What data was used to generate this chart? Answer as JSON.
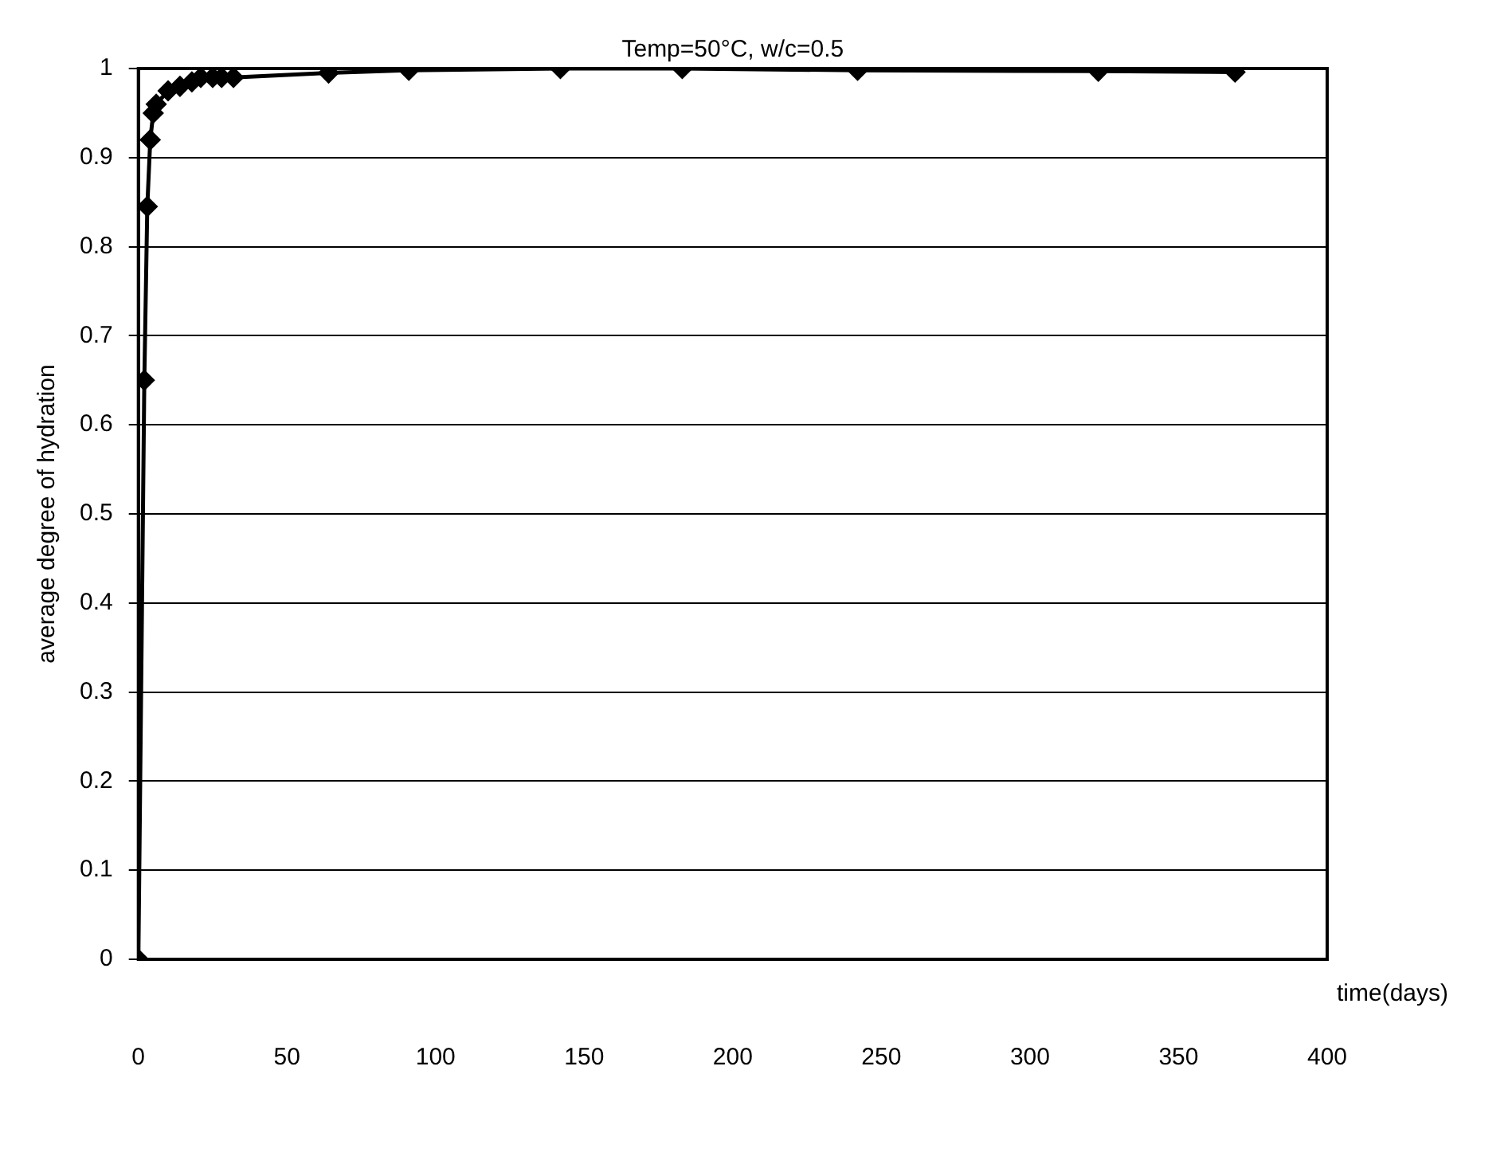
{
  "chart_data": {
    "type": "line",
    "title": "Temp=50°C, w/c=0.5",
    "xlabel": "time(days)",
    "ylabel": "average degree of hydration",
    "series": [
      {
        "color": "#000000",
        "x": [
          0,
          2,
          3,
          4,
          5,
          6,
          10,
          14,
          18,
          21,
          25,
          28,
          32,
          64,
          91,
          142,
          183,
          242,
          323,
          369
        ],
        "values": [
          0,
          0.65,
          0.845,
          0.92,
          0.95,
          0.96,
          0.975,
          0.98,
          0.985,
          0.99,
          0.99,
          0.99,
          0.99,
          0.995,
          0.998,
          1.0,
          1.0,
          0.998,
          0.997,
          0.996
        ]
      }
    ],
    "xlim": [
      0,
      400
    ],
    "xticks": [
      0,
      50,
      100,
      150,
      200,
      250,
      300,
      350,
      400
    ],
    "ylim": [
      0,
      1
    ],
    "yticks": [
      0,
      0.1,
      0.2,
      0.3,
      0.4,
      0.5,
      0.6,
      0.7,
      0.8,
      0.9,
      1
    ],
    "grid": "y",
    "legend": false,
    "marker": "diamond",
    "line_style": "solid"
  }
}
